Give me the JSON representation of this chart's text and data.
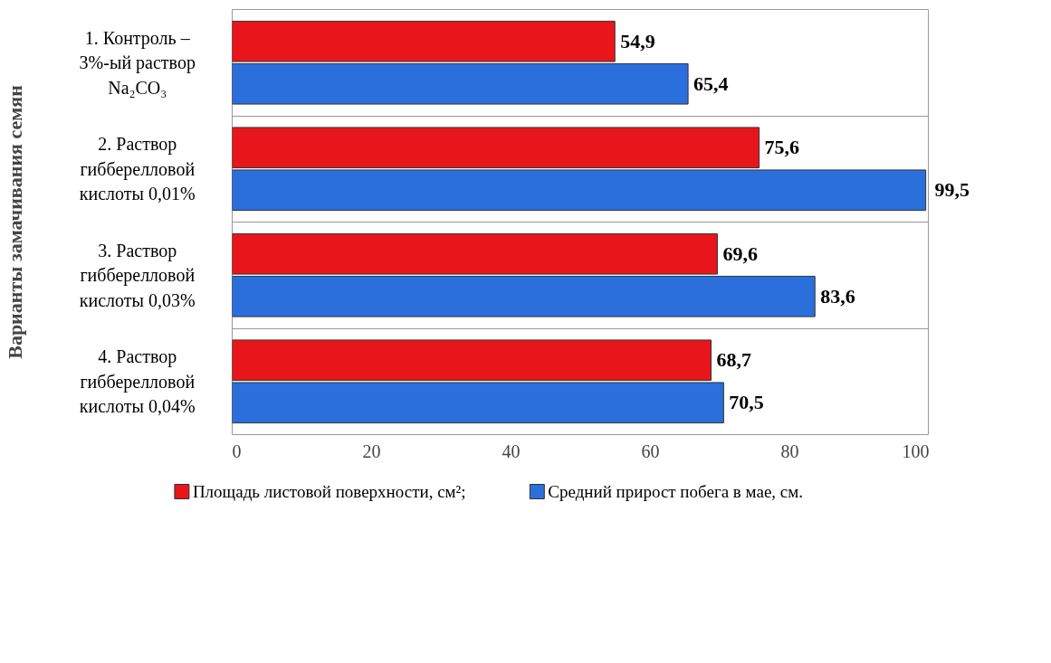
{
  "chart_data": {
    "type": "bar",
    "orientation": "horizontal",
    "ylabel": "Варианты замачивания семян",
    "categories": [
      "1. Контроль –\n3%-ый раствор\nNa₂CO₃",
      "2. Раствор\nгибберелловой\nкислоты 0,01%",
      "3. Раствор\nгибберелловой\nкислоты 0,03%",
      "4. Раствор\nгибберелловой\nкислоты 0,04%"
    ],
    "series": [
      {
        "name": "Площадь листовой поверхности, см²;",
        "color": "#e8151b",
        "values": [
          54.9,
          75.6,
          69.6,
          68.7
        ]
      },
      {
        "name": "Средний прирост побега в мае, см.",
        "color": "#2a6fdb",
        "values": [
          65.4,
          99.5,
          83.6,
          70.5
        ]
      }
    ],
    "value_labels": [
      [
        "54,9",
        "75,6",
        "69,6",
        "68,7"
      ],
      [
        "65,4",
        "99,5",
        "83,6",
        "70,5"
      ]
    ],
    "xlim": [
      0,
      100
    ],
    "xticks": [
      0,
      20,
      40,
      60,
      80,
      100
    ],
    "grid": "y",
    "legend": "bottom"
  }
}
